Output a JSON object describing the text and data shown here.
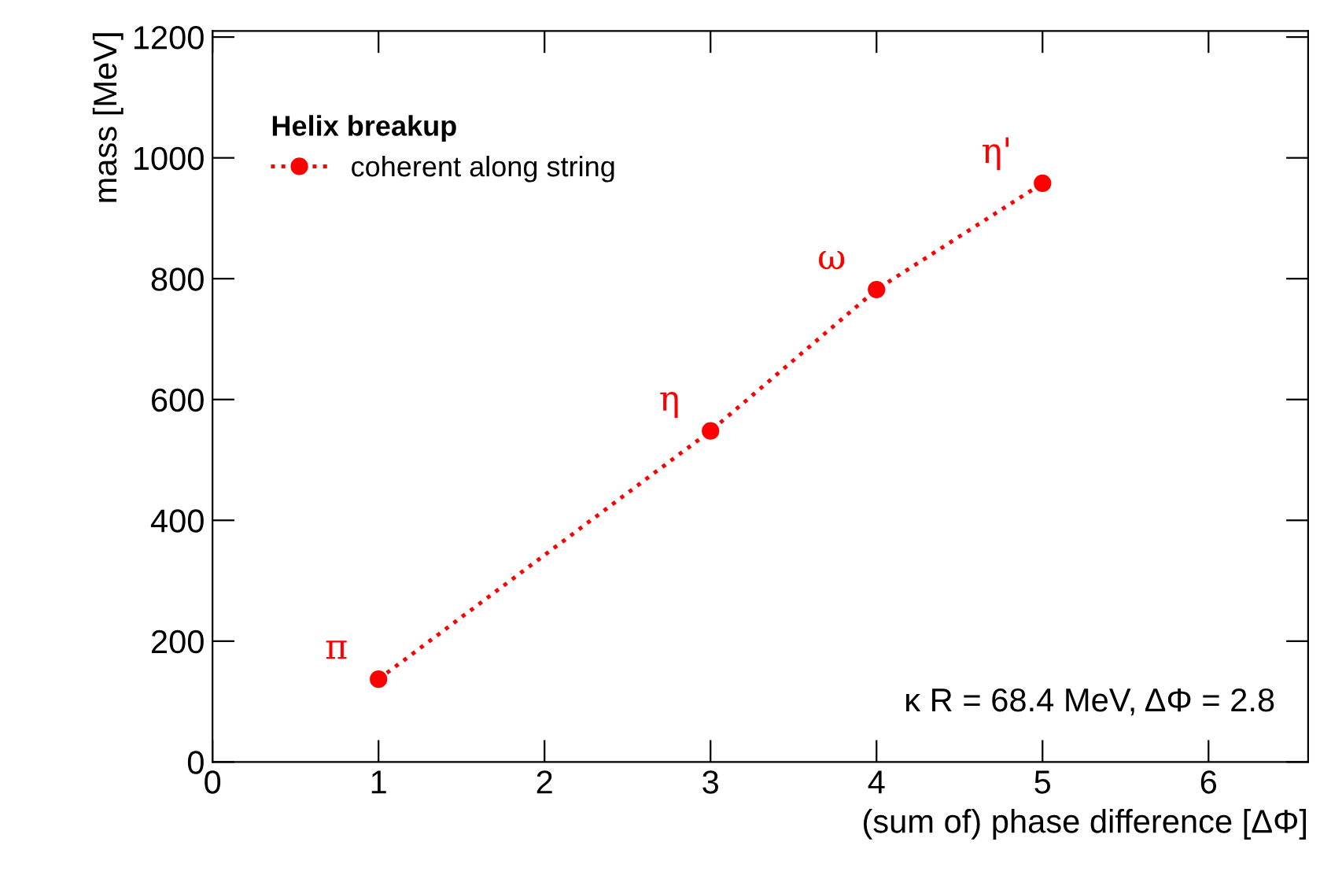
{
  "chart_data": {
    "type": "line",
    "xlabel": "(sum of) phase difference [ΔΦ]",
    "ylabel": "mass [MeV]",
    "legend_title": "Helix breakup",
    "x": [
      1,
      3,
      4,
      5
    ],
    "series": [
      {
        "name": "coherent along string",
        "color": "#ff0000",
        "values": [
          137,
          548,
          782,
          958
        ]
      }
    ],
    "xlim": [
      0,
      6.6
    ],
    "ylim": [
      0,
      1210
    ],
    "xticks": [
      0,
      1,
      2,
      3,
      4,
      5,
      6
    ],
    "yticks": [
      0,
      200,
      400,
      600,
      800,
      1000,
      1200
    ],
    "marker": "circle",
    "line_style": "dotted",
    "grid": false,
    "legend": "top left",
    "annotations": [
      {
        "text": "π",
        "x": 1,
        "y": 137
      },
      {
        "text": "η",
        "x": 3,
        "y": 548
      },
      {
        "text": "ω",
        "x": 4,
        "y": 782
      },
      {
        "text": "η'",
        "x": 5,
        "y": 958
      },
      "κ R = 68.4 MeV, ΔΦ = 2.8"
    ]
  }
}
